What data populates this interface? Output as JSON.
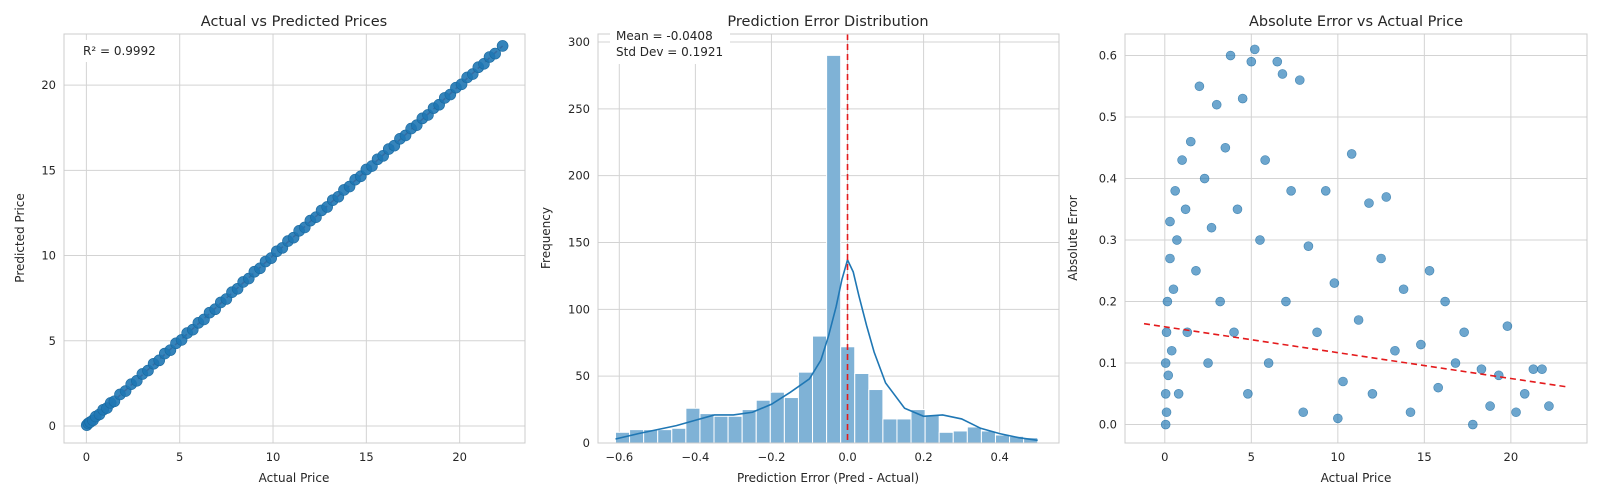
{
  "colors": {
    "points": "#1f77b4",
    "bars": "#7fb2d6",
    "kde": "#1f77b4",
    "reference": "#e41a1c"
  },
  "chart_data": [
    {
      "type": "scatter",
      "title": "Actual vs Predicted Prices",
      "xlabel": "Actual Price",
      "ylabel": "Predicted Price",
      "xlim": [
        -1.2,
        23.5
      ],
      "ylim": [
        -1.0,
        23.0
      ],
      "xticks": [
        0,
        5,
        10,
        15,
        20
      ],
      "yticks": [
        0,
        5,
        10,
        15,
        20
      ],
      "grid": true,
      "annotation": "R² = 0.9992",
      "reference_line": {
        "style": "dashed",
        "x": [
          0,
          22.3
        ],
        "y": [
          0,
          22.3
        ]
      },
      "points_x": [
        0.02,
        0.1,
        0.2,
        0.35,
        0.5,
        0.7,
        0.9,
        1.1,
        1.3,
        1.5,
        1.8,
        2.1,
        2.4,
        2.7,
        3.0,
        3.3,
        3.6,
        3.9,
        4.2,
        4.5,
        4.8,
        5.1,
        5.4,
        5.7,
        6.0,
        6.3,
        6.6,
        6.9,
        7.2,
        7.5,
        7.8,
        8.1,
        8.4,
        8.7,
        9.0,
        9.3,
        9.6,
        9.9,
        10.2,
        10.5,
        10.8,
        11.1,
        11.4,
        11.7,
        12.0,
        12.3,
        12.6,
        12.9,
        13.2,
        13.5,
        13.8,
        14.1,
        14.4,
        14.7,
        15.0,
        15.3,
        15.6,
        15.9,
        16.2,
        16.5,
        16.8,
        17.1,
        17.4,
        17.7,
        18.0,
        18.3,
        18.6,
        18.9,
        19.2,
        19.5,
        19.8,
        20.1,
        20.4,
        20.7,
        21.0,
        21.3,
        21.6,
        21.9,
        22.3
      ],
      "points_y": [
        0.05,
        0.15,
        0.22,
        0.33,
        0.55,
        0.68,
        0.95,
        1.05,
        1.35,
        1.45,
        1.85,
        2.05,
        2.45,
        2.65,
        3.05,
        3.25,
        3.65,
        3.85,
        4.25,
        4.45,
        4.85,
        5.05,
        5.45,
        5.65,
        6.05,
        6.25,
        6.65,
        6.85,
        7.25,
        7.45,
        7.85,
        8.05,
        8.45,
        8.65,
        9.05,
        9.25,
        9.65,
        9.85,
        10.25,
        10.45,
        10.85,
        11.05,
        11.45,
        11.65,
        12.05,
        12.25,
        12.65,
        12.85,
        13.25,
        13.45,
        13.85,
        14.05,
        14.45,
        14.65,
        15.05,
        15.25,
        15.65,
        15.85,
        16.25,
        16.45,
        16.85,
        17.05,
        17.45,
        17.65,
        18.05,
        18.25,
        18.65,
        18.85,
        19.25,
        19.45,
        19.85,
        20.05,
        20.45,
        20.65,
        21.05,
        21.25,
        21.65,
        21.85,
        22.3
      ]
    },
    {
      "type": "bar",
      "title": "Prediction Error Distribution",
      "xlabel": "Prediction Error (Pred - Actual)",
      "ylabel": "Frequency",
      "xlim": [
        -0.656,
        0.556
      ],
      "ylim": [
        0,
        306
      ],
      "xticks": [
        -0.6,
        -0.4,
        -0.2,
        0.0,
        0.2,
        0.4
      ],
      "xtick_labels": [
        "−0.6",
        "−0.4",
        "−0.2",
        "0.0",
        "0.2",
        "0.4"
      ],
      "yticks": [
        0,
        50,
        100,
        150,
        200,
        250,
        300
      ],
      "grid": true,
      "annotation": [
        "Mean = -0.0408",
        "Std Dev = 0.1921"
      ],
      "vline": {
        "x": 0.0,
        "style": "dashed"
      },
      "bin_edges": [
        -0.61,
        -0.573,
        -0.536,
        -0.499,
        -0.462,
        -0.425,
        -0.388,
        -0.351,
        -0.314,
        -0.277,
        -0.24,
        -0.203,
        -0.166,
        -0.129,
        -0.092,
        -0.055,
        -0.018,
        0.019,
        0.056,
        0.093,
        0.13,
        0.167,
        0.204,
        0.241,
        0.278,
        0.315,
        0.352,
        0.389,
        0.426,
        0.463,
        0.5
      ],
      "counts": [
        8,
        10,
        10,
        10,
        11,
        26,
        22,
        20,
        20,
        25,
        32,
        38,
        34,
        53,
        80,
        290,
        72,
        52,
        40,
        18,
        18,
        25,
        21,
        8,
        9,
        12,
        9,
        6,
        5,
        4
      ],
      "kde_x": [
        -0.61,
        -0.55,
        -0.5,
        -0.45,
        -0.4,
        -0.35,
        -0.3,
        -0.25,
        -0.2,
        -0.15,
        -0.1,
        -0.07,
        -0.05,
        -0.03,
        -0.015,
        0.0,
        0.015,
        0.03,
        0.05,
        0.07,
        0.1,
        0.15,
        0.2,
        0.25,
        0.3,
        0.35,
        0.4,
        0.45,
        0.5
      ],
      "kde_y": [
        3,
        7,
        10,
        13,
        17,
        21,
        21,
        23,
        29,
        38,
        48,
        62,
        80,
        102,
        122,
        137,
        128,
        110,
        88,
        68,
        45,
        26,
        20,
        21,
        18,
        11,
        7,
        4,
        2
      ]
    },
    {
      "type": "scatter",
      "title": "Absolute Error vs Actual Price",
      "xlabel": "Actual Price",
      "ylabel": "Absolute Error",
      "xlim": [
        -2.3,
        24.4
      ],
      "ylim": [
        -0.03,
        0.635
      ],
      "xticks": [
        0,
        5,
        10,
        15,
        20
      ],
      "yticks": [
        0.0,
        0.1,
        0.2,
        0.3,
        0.4,
        0.5,
        0.6
      ],
      "yticks_labels": [
        "0.0",
        "0.1",
        "0.2",
        "0.3",
        "0.4",
        "0.5",
        "0.6"
      ],
      "grid": true,
      "trend_line": {
        "style": "dashed",
        "x": [
          -1.2,
          23.3
        ],
        "y": [
          0.164,
          0.061
        ]
      },
      "points": [
        [
          0.05,
          0.0
        ],
        [
          0.05,
          0.05
        ],
        [
          0.05,
          0.1
        ],
        [
          0.1,
          0.02
        ],
        [
          0.1,
          0.15
        ],
        [
          0.15,
          0.2
        ],
        [
          0.2,
          0.08
        ],
        [
          0.3,
          0.27
        ],
        [
          0.3,
          0.33
        ],
        [
          0.4,
          0.12
        ],
        [
          0.5,
          0.22
        ],
        [
          0.6,
          0.38
        ],
        [
          0.7,
          0.3
        ],
        [
          0.8,
          0.05
        ],
        [
          1.0,
          0.43
        ],
        [
          1.2,
          0.35
        ],
        [
          1.3,
          0.15
        ],
        [
          1.5,
          0.46
        ],
        [
          1.8,
          0.25
        ],
        [
          2.0,
          0.55
        ],
        [
          2.3,
          0.4
        ],
        [
          2.5,
          0.1
        ],
        [
          2.7,
          0.32
        ],
        [
          3.0,
          0.52
        ],
        [
          3.2,
          0.2
        ],
        [
          3.5,
          0.45
        ],
        [
          3.8,
          0.6
        ],
        [
          4.0,
          0.15
        ],
        [
          4.2,
          0.35
        ],
        [
          4.5,
          0.53
        ],
        [
          4.8,
          0.05
        ],
        [
          5.0,
          0.59
        ],
        [
          5.2,
          0.61
        ],
        [
          5.5,
          0.3
        ],
        [
          5.8,
          0.43
        ],
        [
          6.0,
          0.1
        ],
        [
          6.5,
          0.59
        ],
        [
          6.8,
          0.57
        ],
        [
          7.0,
          0.2
        ],
        [
          7.3,
          0.38
        ],
        [
          7.8,
          0.56
        ],
        [
          8.0,
          0.02
        ],
        [
          8.3,
          0.29
        ],
        [
          8.8,
          0.15
        ],
        [
          9.3,
          0.38
        ],
        [
          9.8,
          0.23
        ],
        [
          10.0,
          0.01
        ],
        [
          10.3,
          0.07
        ],
        [
          10.8,
          0.44
        ],
        [
          11.2,
          0.17
        ],
        [
          11.8,
          0.36
        ],
        [
          12.0,
          0.05
        ],
        [
          12.5,
          0.27
        ],
        [
          12.8,
          0.37
        ],
        [
          13.3,
          0.12
        ],
        [
          13.8,
          0.22
        ],
        [
          14.2,
          0.02
        ],
        [
          14.8,
          0.13
        ],
        [
          15.3,
          0.25
        ],
        [
          15.8,
          0.06
        ],
        [
          16.2,
          0.2
        ],
        [
          16.8,
          0.1
        ],
        [
          17.3,
          0.15
        ],
        [
          17.8,
          0.0
        ],
        [
          18.3,
          0.09
        ],
        [
          18.8,
          0.03
        ],
        [
          19.3,
          0.08
        ],
        [
          19.8,
          0.16
        ],
        [
          20.3,
          0.02
        ],
        [
          20.8,
          0.05
        ],
        [
          21.3,
          0.09
        ],
        [
          21.8,
          0.09
        ],
        [
          22.2,
          0.03
        ]
      ]
    }
  ]
}
